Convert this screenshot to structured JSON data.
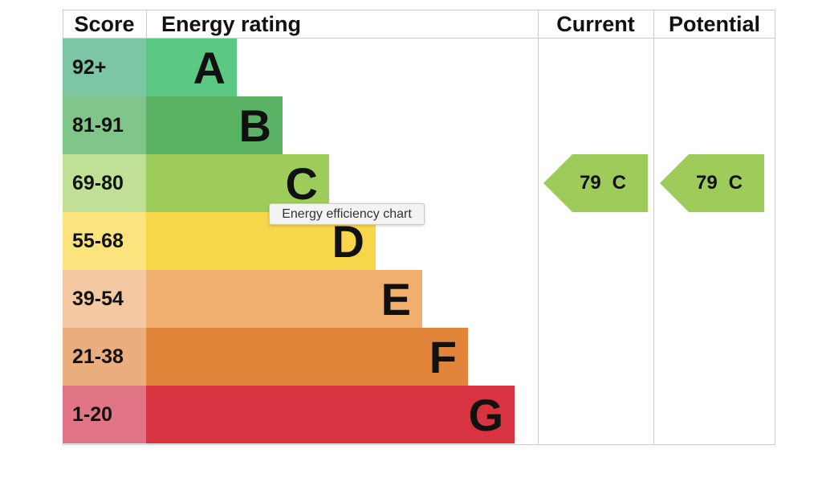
{
  "header": {
    "score": "Score",
    "rating": "Energy rating",
    "current": "Current",
    "potential": "Potential"
  },
  "rows": [
    {
      "score": "92+",
      "band": "A"
    },
    {
      "score": "81-91",
      "band": "B"
    },
    {
      "score": "69-80",
      "band": "C"
    },
    {
      "score": "55-68",
      "band": "D"
    },
    {
      "score": "39-54",
      "band": "E"
    },
    {
      "score": "21-38",
      "band": "F"
    },
    {
      "score": "1-20",
      "band": "G"
    }
  ],
  "current": {
    "value": 79,
    "band": "C"
  },
  "potential": {
    "value": 79,
    "band": "C"
  },
  "tooltip": "Energy efficiency chart"
}
